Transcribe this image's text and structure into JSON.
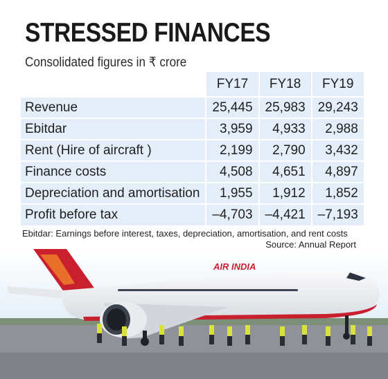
{
  "header": {
    "title": "STRESSED FINANCES",
    "subtitle": "Consolidated figures in ₹ crore"
  },
  "table": {
    "columns": [
      "FY17",
      "FY18",
      "FY19"
    ],
    "rows": [
      {
        "label": "Revenue",
        "values": [
          "25,445",
          "25,983",
          "29,243"
        ]
      },
      {
        "label": "Ebitdar",
        "values": [
          "3,959",
          "4,933",
          "2,988"
        ]
      },
      {
        "label": "Rent (Hire of aircraft )",
        "values": [
          "2,199",
          "2,790",
          "3,432"
        ]
      },
      {
        "label": "Finance costs",
        "values": [
          "4,508",
          "4,651",
          "4,897"
        ]
      },
      {
        "label": "Depreciation and amortisation",
        "values": [
          "1,955",
          "1,912",
          "1,852"
        ]
      },
      {
        "label": "Profit before tax",
        "values": [
          "–4,703",
          "–4,421",
          "–7,193"
        ]
      }
    ]
  },
  "footnote": "Ebitdar: Earnings before interest, taxes, depreciation, amortisation, and rent costs",
  "source": "Source: Annual Report",
  "photo": {
    "airline_text": "AIR INDIA",
    "colors": {
      "sky": "#cfe3f3",
      "fuselage": "#f4f5f7",
      "livery_red": "#c8202f",
      "tail_orange": "#e8702a",
      "tarmac": "#8f9296",
      "vest": "#d8e23a"
    }
  }
}
